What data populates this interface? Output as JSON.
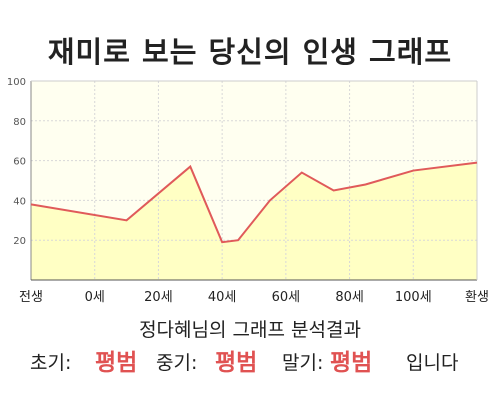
{
  "title": "재미로 보는 당신의 인생 그래프",
  "chart_data": {
    "type": "area",
    "x_tick_labels": [
      "전생",
      "0세",
      "20세",
      "40세",
      "60세",
      "80세",
      "100세",
      "환생"
    ],
    "x": [
      -30,
      0,
      20,
      30,
      35,
      45,
      55,
      65,
      75,
      90,
      110
    ],
    "y": [
      38,
      30,
      57,
      19,
      20,
      40,
      54,
      45,
      48,
      55,
      59
    ],
    "x_range": [
      -30,
      110
    ],
    "ylim": [
      0,
      100
    ],
    "y_ticks": [
      20,
      40,
      60,
      80,
      100
    ],
    "grid": true,
    "line_color": "#e05a5a",
    "fill_color": "#ffffc4",
    "plot_background": "#fffff0"
  },
  "result": {
    "heading": "정다혜님의 그래프 분석결과",
    "early_label": "초기:",
    "early_value": "평범",
    "middle_label": "중기:",
    "middle_value": "평범",
    "late_label": "말기:",
    "late_value": "평범",
    "suffix": "입니다"
  },
  "colors": {
    "grade": "#e05252"
  }
}
